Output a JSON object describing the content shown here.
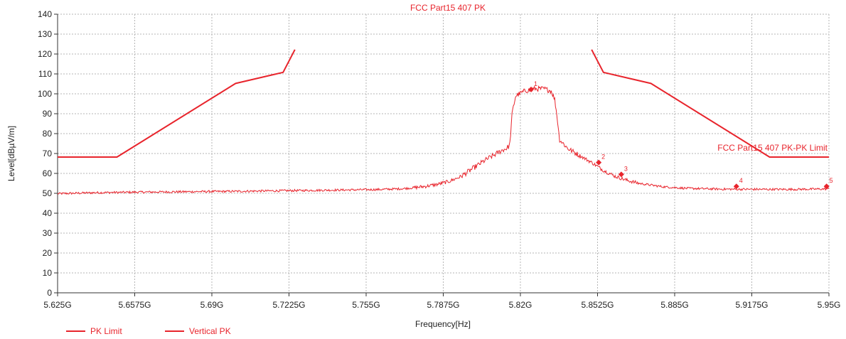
{
  "chart_data": {
    "type": "line",
    "title": "FCC Part15 407 PK",
    "xlabel": "Frequency[Hz]",
    "ylabel": "Level[dBµV/m]",
    "xlim": [
      5.625,
      5.95
    ],
    "ylim": [
      0,
      140
    ],
    "x_unit": "GHz",
    "grid": true,
    "legend_position": "bottom-left",
    "x_ticks": [
      5.625,
      5.6575,
      5.69,
      5.7225,
      5.755,
      5.7875,
      5.82,
      5.8525,
      5.885,
      5.9175,
      5.95
    ],
    "x_tick_labels": [
      "5.625G",
      "5.6575G",
      "5.69G",
      "5.7225G",
      "5.755G",
      "5.7875G",
      "5.82G",
      "5.8525G",
      "5.885G",
      "5.9175G",
      "5.95G"
    ],
    "y_ticks": [
      0,
      10,
      20,
      30,
      40,
      50,
      60,
      70,
      80,
      90,
      100,
      110,
      120,
      130,
      140
    ],
    "y_tick_labels": [
      "0",
      "10",
      "20",
      "30",
      "40",
      "50",
      "60",
      "70",
      "80",
      "90",
      "100",
      "110",
      "120",
      "130",
      "140"
    ],
    "color": "#e8242c",
    "limit_label": "FCC Part15 407 PK-PK Limit",
    "series": [
      {
        "name": "PK Limit",
        "segments": [
          [
            [
              5.625,
              68.2
            ],
            [
              5.65,
              68.2
            ],
            [
              5.7,
              105.2
            ],
            [
              5.72,
              110.8
            ],
            [
              5.725,
              122.2
            ]
          ],
          [
            [
              5.85,
              122.2
            ],
            [
              5.855,
              110.8
            ],
            [
              5.875,
              105.2
            ],
            [
              5.925,
              68.2
            ],
            [
              5.95,
              68.2
            ]
          ]
        ]
      },
      {
        "name": "Vertical PK",
        "values": [
          [
            5.625,
            49.8
          ],
          [
            5.64,
            50.3
          ],
          [
            5.66,
            50.6
          ],
          [
            5.68,
            50.8
          ],
          [
            5.7,
            51.0
          ],
          [
            5.72,
            51.3
          ],
          [
            5.74,
            51.6
          ],
          [
            5.76,
            51.9
          ],
          [
            5.77,
            52.3
          ],
          [
            5.775,
            52.8
          ],
          [
            5.78,
            53.5
          ],
          [
            5.785,
            54.5
          ],
          [
            5.79,
            56.0
          ],
          [
            5.795,
            58.5
          ],
          [
            5.8,
            62.5
          ],
          [
            5.805,
            66.5
          ],
          [
            5.81,
            70.0
          ],
          [
            5.812,
            71.5
          ],
          [
            5.814,
            72.5
          ],
          [
            5.8155,
            74.0
          ],
          [
            5.8165,
            90.0
          ],
          [
            5.818,
            99.0
          ],
          [
            5.822,
            101.5
          ],
          [
            5.826,
            102.5
          ],
          [
            5.83,
            102.5
          ],
          [
            5.833,
            101.5
          ],
          [
            5.8345,
            97.0
          ],
          [
            5.8355,
            88.0
          ],
          [
            5.8365,
            77.0
          ],
          [
            5.84,
            72.5
          ],
          [
            5.845,
            69.0
          ],
          [
            5.85,
            65.5
          ],
          [
            5.855,
            61.5
          ],
          [
            5.86,
            58.5
          ],
          [
            5.865,
            56.5
          ],
          [
            5.87,
            55.0
          ],
          [
            5.88,
            53.3
          ],
          [
            5.89,
            52.5
          ],
          [
            5.905,
            52.1
          ],
          [
            5.92,
            52.0
          ],
          [
            5.935,
            52.0
          ],
          [
            5.95,
            52.2
          ]
        ]
      }
    ],
    "markers": [
      {
        "label": "1",
        "x": 5.8245,
        "y": 102.2
      },
      {
        "label": "2",
        "x": 5.853,
        "y": 65.5
      },
      {
        "label": "3",
        "x": 5.8625,
        "y": 59.5
      },
      {
        "label": "4",
        "x": 5.911,
        "y": 53.5
      },
      {
        "label": "5",
        "x": 5.949,
        "y": 53.5
      }
    ]
  }
}
